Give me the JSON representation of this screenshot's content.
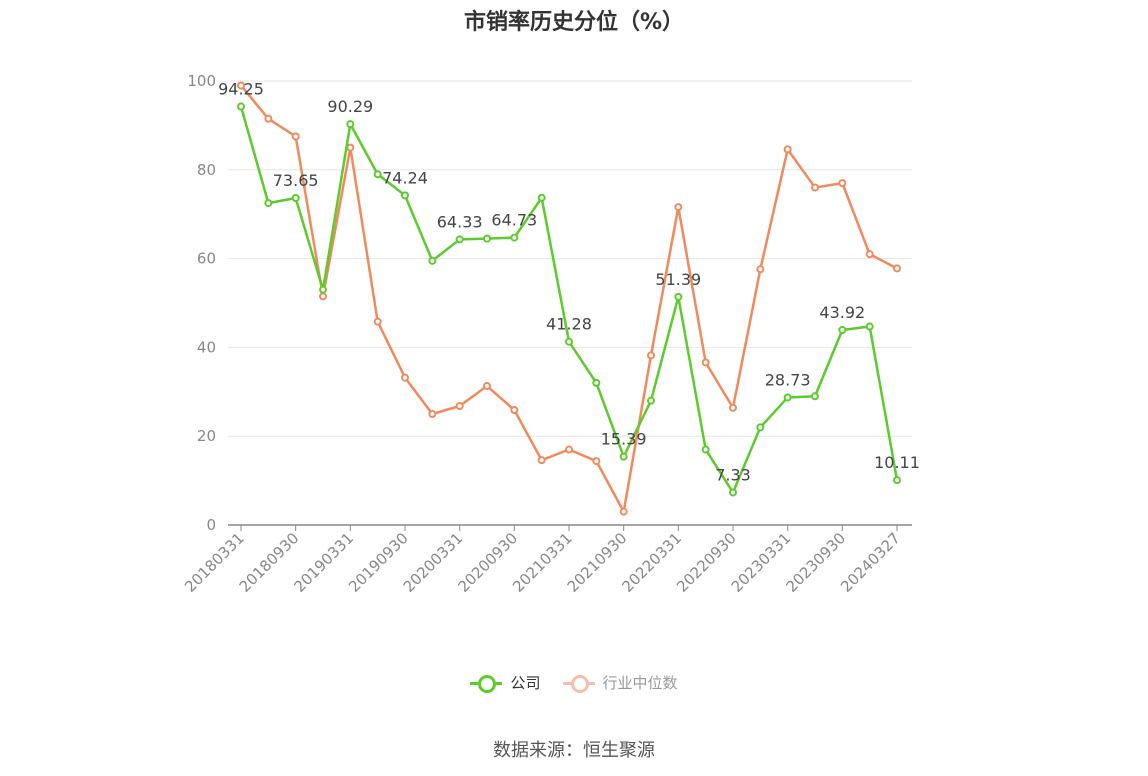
{
  "chart_data": {
    "type": "line",
    "title": "市销率历史分位（%）",
    "x": [
      "20180331",
      "20180630",
      "20180930",
      "20181231",
      "20190331",
      "20190630",
      "20190930",
      "20191231",
      "20200331",
      "20200630",
      "20200930",
      "20201231",
      "20210331",
      "20210630",
      "20210930",
      "20211231",
      "20220331",
      "20220630",
      "20220930",
      "20221231",
      "20230331",
      "20230630",
      "20230930",
      "20231231",
      "20240327"
    ],
    "x_tick_labels": [
      "20180331",
      "20180930",
      "20190331",
      "20190930",
      "20200331",
      "20200930",
      "20210331",
      "20210930",
      "20220331",
      "20220930",
      "20230331",
      "20230930",
      "20240327"
    ],
    "ylim": [
      0,
      100
    ],
    "y_ticks": [
      0,
      20,
      40,
      60,
      80,
      100
    ],
    "grid": true,
    "legend_position": "bottom",
    "series": [
      {
        "name": "公司",
        "color": "#5ccb2c",
        "values": [
          94.25,
          72.5,
          73.65,
          53.0,
          90.29,
          79.0,
          74.24,
          59.5,
          64.33,
          64.5,
          64.73,
          73.7,
          41.28,
          32.0,
          15.39,
          28.0,
          51.39,
          17.0,
          7.33,
          22.0,
          28.73,
          29.0,
          43.92,
          44.7,
          10.11
        ],
        "labeled_points": {
          "0": "94.25",
          "2": "73.65",
          "4": "90.29",
          "6": "74.24",
          "8": "64.33",
          "10": "64.73",
          "12": "41.28",
          "14": "15.39",
          "16": "51.39",
          "18": "7.33",
          "20": "28.73",
          "22": "43.92",
          "24": "10.11"
        }
      },
      {
        "name": "行业中位数",
        "color": "#f08a5d",
        "values": [
          99.0,
          91.5,
          87.5,
          51.5,
          85.0,
          45.8,
          33.2,
          25.0,
          26.8,
          31.3,
          25.9,
          14.6,
          17.0,
          14.4,
          3.0,
          38.2,
          71.6,
          36.6,
          26.4,
          57.6,
          84.6,
          76.0,
          77.0,
          61.0,
          57.8
        ]
      }
    ]
  },
  "source": "数据来源：恒生聚源"
}
